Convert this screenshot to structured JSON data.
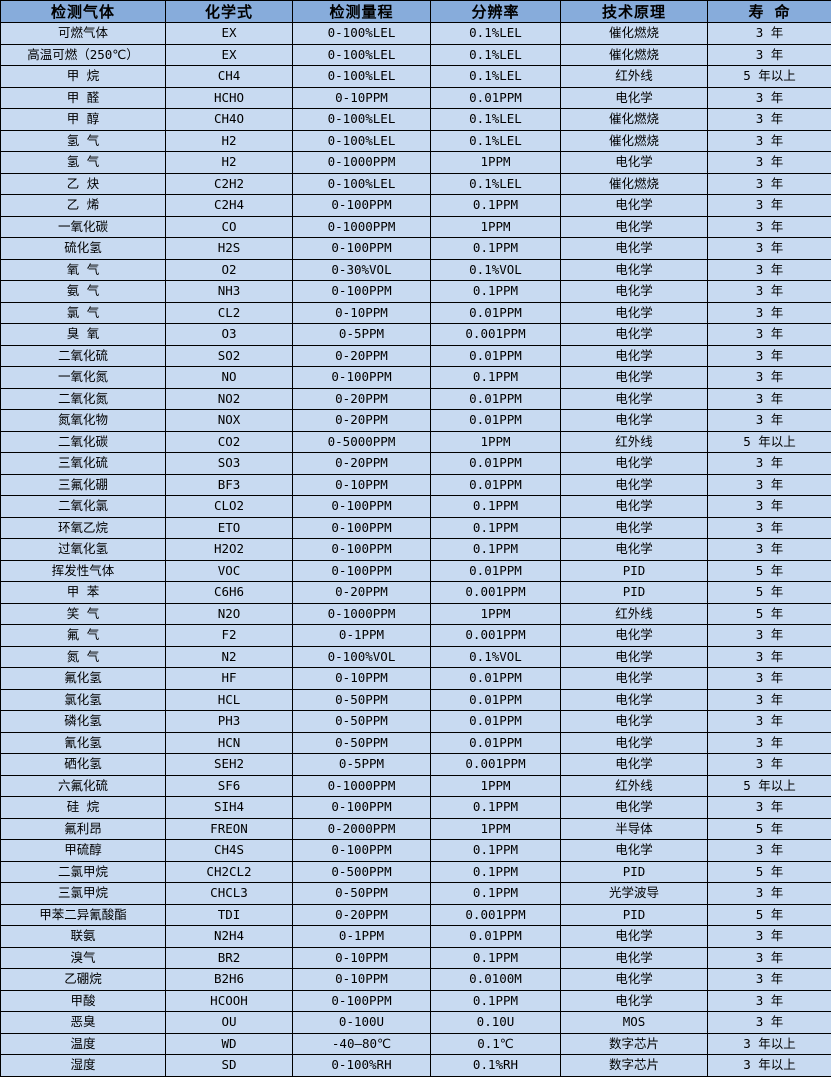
{
  "table": {
    "columns": [
      "检测气体",
      "化学式",
      "检测量程",
      "分辨率",
      "技术原理",
      "寿  命"
    ],
    "column_keys": [
      "gas",
      "formula",
      "range",
      "resolution",
      "principle",
      "lifespan"
    ],
    "rows": [
      [
        "可燃气体",
        "EX",
        "0-100%LEL",
        "0.1%LEL",
        "催化燃烧",
        "3 年"
      ],
      [
        "高温可燃（250℃）",
        "EX",
        "0-100%LEL",
        "0.1%LEL",
        "催化燃烧",
        "3 年"
      ],
      [
        "甲  烷",
        "CH4",
        "0-100%LEL",
        "0.1%LEL",
        "红外线",
        "5 年以上"
      ],
      [
        "甲  醛",
        "HCHO",
        "0-10PPM",
        "0.01PPM",
        "电化学",
        "3 年"
      ],
      [
        "甲  醇",
        "CH4O",
        "0-100%LEL",
        "0.1%LEL",
        "催化燃烧",
        "3 年"
      ],
      [
        "氢  气",
        "H2",
        "0-100%LEL",
        "0.1%LEL",
        "催化燃烧",
        "3 年"
      ],
      [
        "氢  气",
        "H2",
        "0-1000PPM",
        "1PPM",
        "电化学",
        "3 年"
      ],
      [
        "乙  炔",
        "C2H2",
        "0-100%LEL",
        "0.1%LEL",
        "催化燃烧",
        "3 年"
      ],
      [
        "乙  烯",
        "C2H4",
        "0-100PPM",
        "0.1PPM",
        "电化学",
        "3 年"
      ],
      [
        "一氧化碳",
        "CO",
        "0-1000PPM",
        "1PPM",
        "电化学",
        "3 年"
      ],
      [
        "硫化氢",
        "H2S",
        "0-100PPM",
        "0.1PPM",
        "电化学",
        "3 年"
      ],
      [
        "氧  气",
        "O2",
        "0-30%VOL",
        "0.1%VOL",
        "电化学",
        "3 年"
      ],
      [
        "氨  气",
        "NH3",
        "0-100PPM",
        "0.1PPM",
        "电化学",
        "3 年"
      ],
      [
        "氯  气",
        "CL2",
        "0-10PPM",
        "0.01PPM",
        "电化学",
        "3 年"
      ],
      [
        "臭  氧",
        "O3",
        "0-5PPM",
        "0.001PPM",
        "电化学",
        "3 年"
      ],
      [
        "二氧化硫",
        "SO2",
        "0-20PPM",
        "0.01PPM",
        "电化学",
        "3 年"
      ],
      [
        "一氧化氮",
        "NO",
        "0-100PPM",
        "0.1PPM",
        "电化学",
        "3 年"
      ],
      [
        "二氧化氮",
        "NO2",
        "0-20PPM",
        "0.01PPM",
        "电化学",
        "3 年"
      ],
      [
        "氮氧化物",
        "NOX",
        "0-20PPM",
        "0.01PPM",
        "电化学",
        "3 年"
      ],
      [
        "二氧化碳",
        "CO2",
        "0-5000PPM",
        "1PPM",
        "红外线",
        "5 年以上"
      ],
      [
        "三氧化硫",
        "SO3",
        "0-20PPM",
        "0.01PPM",
        "电化学",
        "3 年"
      ],
      [
        "三氟化硼",
        "BF3",
        "0-10PPM",
        "0.01PPM",
        "电化学",
        "3 年"
      ],
      [
        "二氧化氯",
        "CLO2",
        "0-100PPM",
        "0.1PPM",
        "电化学",
        "3 年"
      ],
      [
        "环氧乙烷",
        "ETO",
        "0-100PPM",
        "0.1PPM",
        "电化学",
        "3 年"
      ],
      [
        "过氧化氢",
        "H2O2",
        "0-100PPM",
        "0.1PPM",
        "电化学",
        "3 年"
      ],
      [
        "挥发性气体",
        "VOC",
        "0-100PPM",
        "0.01PPM",
        "PID",
        "5 年"
      ],
      [
        "甲  苯",
        "C6H6",
        "0-20PPM",
        "0.001PPM",
        "PID",
        "5 年"
      ],
      [
        "笑  气",
        "N2O",
        "0-1000PPM",
        "1PPM",
        "红外线",
        "5 年"
      ],
      [
        "氟  气",
        "F2",
        "0-1PPM",
        "0.001PPM",
        "电化学",
        "3 年"
      ],
      [
        "氮  气",
        "N2",
        "0-100%VOL",
        "0.1%VOL",
        "电化学",
        "3 年"
      ],
      [
        "氟化氢",
        "HF",
        "0-10PPM",
        "0.01PPM",
        "电化学",
        "3 年"
      ],
      [
        "氯化氢",
        "HCL",
        "0-50PPM",
        "0.01PPM",
        "电化学",
        "3 年"
      ],
      [
        "磷化氢",
        "PH3",
        "0-50PPM",
        "0.01PPM",
        "电化学",
        "3 年"
      ],
      [
        "氰化氢",
        "HCN",
        "0-50PPM",
        "0.01PPM",
        "电化学",
        "3 年"
      ],
      [
        "硒化氢",
        "SEH2",
        "0-5PPM",
        "0.001PPM",
        "电化学",
        "3 年"
      ],
      [
        "六氟化硫",
        "SF6",
        "0-1000PPM",
        "1PPM",
        "红外线",
        "5 年以上"
      ],
      [
        "硅  烷",
        "SIH4",
        "0-100PPM",
        "0.1PPM",
        "电化学",
        "3 年"
      ],
      [
        "氟利昂",
        "FREON",
        "0-2000PPM",
        "1PPM",
        "半导体",
        "5 年"
      ],
      [
        "甲硫醇",
        "CH4S",
        "0-100PPM",
        "0.1PPM",
        "电化学",
        "3 年"
      ],
      [
        "二氯甲烷",
        "CH2CL2",
        "0-500PPM",
        "0.1PPM",
        "PID",
        "5 年"
      ],
      [
        "三氯甲烷",
        "CHCL3",
        "0-50PPM",
        "0.1PPM",
        "光学波导",
        "3 年"
      ],
      [
        "甲苯二异氰酸酯",
        "TDI",
        "0-20PPM",
        "0.001PPM",
        "PID",
        "5 年"
      ],
      [
        "联氨",
        "N2H4",
        "0-1PPM",
        "0.01PPM",
        "电化学",
        "3 年"
      ],
      [
        "溴气",
        "BR2",
        "0-10PPM",
        "0.1PPM",
        "电化学",
        "3 年"
      ],
      [
        "乙硼烷",
        "B2H6",
        "0-10PPM",
        "0.0100M",
        "电化学",
        "3 年"
      ],
      [
        "甲酸",
        "HCOOH",
        "0-100PPM",
        "0.1PPM",
        "电化学",
        "3 年"
      ],
      [
        "恶臭",
        "OU",
        "0-100U",
        "0.10U",
        "MOS",
        "3 年"
      ],
      [
        "温度",
        "WD",
        "-40—80℃",
        "0.1℃",
        "数字芯片",
        "3 年以上"
      ],
      [
        "湿度",
        "SD",
        "0-100%RH",
        "0.1%RH",
        "数字芯片",
        "3 年以上"
      ]
    ],
    "colors": {
      "header_bg": "#87acdb",
      "row_bg": "#c8daf1",
      "border": "#000000",
      "text": "#000000"
    }
  }
}
